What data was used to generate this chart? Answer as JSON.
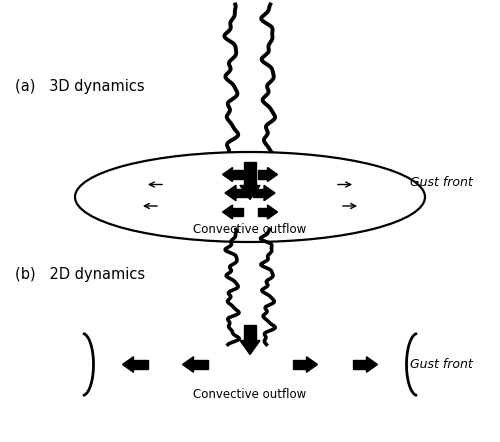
{
  "bg_color": "#ffffff",
  "label_a": "(a)   3D dynamics",
  "label_b": "(b)   2D dynamics",
  "gust_front_label": "Gust front",
  "convective_outflow_label": "Convective outflow",
  "cloud_color": "#000000"
}
